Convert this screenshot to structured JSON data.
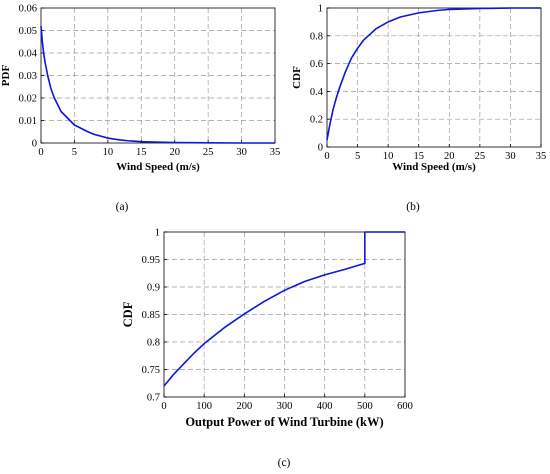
{
  "chart_data": [
    {
      "id": "a",
      "type": "line",
      "caption": "(a)",
      "xlabel": "Wind Speed (m/s)",
      "ylabel": "PDF",
      "xlim": [
        0,
        35
      ],
      "ylim": [
        0,
        0.06
      ],
      "xticks": [
        0,
        5,
        10,
        15,
        20,
        25,
        30,
        35
      ],
      "yticks": [
        "0",
        "0.01",
        "0.02",
        "0.03",
        "0.04",
        "0.05",
        "0.06"
      ],
      "grid": true,
      "series": [
        {
          "color": "#0b16d8",
          "x": [
            0,
            0.2,
            0.4,
            0.6,
            0.8,
            1,
            1.5,
            2,
            2.5,
            3,
            4,
            5,
            6,
            7,
            8,
            9,
            10,
            11,
            12,
            13,
            14,
            15,
            17,
            20,
            25,
            30,
            35
          ],
          "y": [
            0.052,
            0.045,
            0.04,
            0.036,
            0.033,
            0.03,
            0.024,
            0.02,
            0.017,
            0.014,
            0.011,
            0.008,
            0.0065,
            0.005,
            0.0038,
            0.003,
            0.0022,
            0.0017,
            0.0013,
            0.001,
            0.0008,
            0.0006,
            0.0004,
            0.0002,
            0.0001,
            0.0,
            0.0
          ]
        }
      ]
    },
    {
      "id": "b",
      "type": "line",
      "caption": "(b)",
      "xlabel": "Wind Speed (m/s)",
      "ylabel": "CDF",
      "xlim": [
        0,
        35
      ],
      "ylim": [
        0,
        1
      ],
      "xticks": [
        0,
        5,
        10,
        15,
        20,
        25,
        30,
        35
      ],
      "yticks": [
        "0",
        "0.2",
        "0.4",
        "0.6",
        "0.8",
        "1"
      ],
      "grid": true,
      "series": [
        {
          "color": "#0b16d8",
          "x": [
            0,
            0.5,
            1,
            1.5,
            2,
            3,
            4,
            5,
            6,
            7,
            8,
            10,
            12,
            15,
            18,
            20,
            25,
            30,
            35
          ],
          "y": [
            0.05,
            0.17,
            0.27,
            0.35,
            0.42,
            0.54,
            0.64,
            0.71,
            0.77,
            0.81,
            0.85,
            0.9,
            0.935,
            0.965,
            0.982,
            0.99,
            0.997,
            1.0,
            1.0
          ]
        }
      ]
    },
    {
      "id": "c",
      "type": "line",
      "caption": "(c)",
      "xlabel": "Output Power of Wind Turbine (kW)",
      "ylabel": "CDF",
      "xlim": [
        0,
        600
      ],
      "ylim": [
        0.7,
        1
      ],
      "xticks": [
        0,
        100,
        200,
        300,
        400,
        500,
        600
      ],
      "yticks": [
        "0.7",
        "0.75",
        "0.8",
        "0.85",
        "0.9",
        "0.95",
        "1"
      ],
      "grid": true,
      "series": [
        {
          "color": "#0b16d8",
          "x": [
            0,
            25,
            50,
            75,
            100,
            150,
            200,
            250,
            300,
            350,
            400,
            450,
            500,
            500,
            600
          ],
          "y": [
            0.72,
            0.742,
            0.761,
            0.78,
            0.797,
            0.826,
            0.851,
            0.874,
            0.894,
            0.91,
            0.922,
            0.932,
            0.943,
            1.0,
            1.0
          ]
        }
      ]
    }
  ]
}
